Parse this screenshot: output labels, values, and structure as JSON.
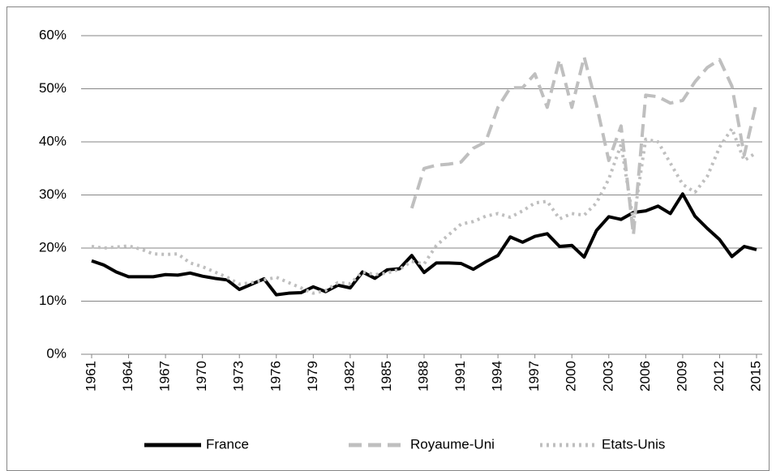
{
  "chart_data": {
    "type": "line",
    "x": [
      1961,
      1962,
      1963,
      1964,
      1965,
      1966,
      1967,
      1968,
      1969,
      1970,
      1971,
      1972,
      1973,
      1974,
      1975,
      1976,
      1977,
      1978,
      1979,
      1980,
      1981,
      1982,
      1983,
      1984,
      1985,
      1986,
      1987,
      1988,
      1989,
      1990,
      1991,
      1992,
      1993,
      1994,
      1995,
      1996,
      1997,
      1998,
      1999,
      2000,
      2001,
      2002,
      2003,
      2004,
      2005,
      2006,
      2007,
      2008,
      2009,
      2010,
      2011,
      2012,
      2013,
      2014,
      2015
    ],
    "xlim": [
      1961,
      2015
    ],
    "xticks": [
      1961,
      1964,
      1967,
      1970,
      1973,
      1976,
      1979,
      1982,
      1985,
      1988,
      1991,
      1994,
      1997,
      2000,
      2003,
      2006,
      2009,
      2012,
      2015
    ],
    "ylim": [
      0,
      60
    ],
    "yticks": [
      {
        "value": 0,
        "label": "0%"
      },
      {
        "value": 10,
        "label": "10%"
      },
      {
        "value": 20,
        "label": "20%"
      },
      {
        "value": 30,
        "label": "30%"
      },
      {
        "value": 40,
        "label": "40%"
      },
      {
        "value": 50,
        "label": "50%"
      },
      {
        "value": 60,
        "label": "60%"
      }
    ],
    "grid": true,
    "legend": "bottom",
    "series": [
      {
        "name": "France",
        "color": "#000000",
        "dash": "solid",
        "values": [
          17.6,
          16.8,
          15.5,
          14.6,
          14.6,
          14.6,
          15.0,
          14.9,
          15.3,
          14.7,
          14.3,
          14.0,
          12.2,
          13.2,
          14.2,
          11.2,
          11.5,
          11.6,
          12.7,
          11.8,
          13.0,
          12.5,
          15.5,
          14.3,
          15.9,
          16.1,
          18.6,
          15.4,
          17.2,
          17.2,
          17.1,
          16.0,
          17.4,
          18.6,
          22.1,
          21.1,
          22.2,
          22.7,
          20.3,
          20.5,
          18.3,
          23.3,
          25.9,
          25.4,
          26.7,
          27.0,
          27.9,
          26.5,
          30.2,
          26.0,
          23.7,
          21.6,
          18.4,
          20.3,
          19.7
        ]
      },
      {
        "name": "Royaume-Uni",
        "color": "#bfbfbf",
        "dash": "dashed",
        "values": [
          null,
          null,
          null,
          null,
          null,
          null,
          null,
          null,
          null,
          null,
          null,
          null,
          null,
          null,
          null,
          null,
          null,
          null,
          null,
          null,
          null,
          null,
          null,
          null,
          null,
          null,
          27.5,
          35.0,
          35.6,
          35.8,
          36.2,
          38.8,
          40.0,
          46.5,
          50.2,
          50.2,
          52.8,
          46.5,
          55.5,
          46.5,
          56.0,
          47.0,
          36.5,
          43.0,
          22.5,
          48.8,
          48.5,
          47.3,
          47.8,
          51.3,
          54.0,
          55.5,
          50.5,
          37.5,
          47.5
        ]
      },
      {
        "name": "Etats-Unis",
        "color": "#bfbfbf",
        "dash": "dotted",
        "values": [
          20.3,
          20.0,
          20.2,
          20.4,
          19.8,
          18.9,
          18.8,
          18.9,
          17.2,
          16.5,
          15.5,
          14.5,
          13.2,
          13.5,
          14.0,
          14.5,
          13.5,
          12.5,
          11.5,
          12.0,
          13.5,
          13.3,
          15.5,
          15.0,
          15.3,
          16.0,
          17.5,
          17.0,
          20.5,
          22.5,
          24.5,
          25.0,
          26.0,
          26.5,
          25.8,
          27.0,
          28.5,
          28.8,
          25.5,
          26.5,
          26.2,
          28.5,
          33.0,
          39.5,
          25.0,
          40.5,
          40.0,
          36.0,
          32.0,
          30.5,
          33.5,
          39.0,
          42.5,
          36.5,
          38.0
        ]
      }
    ]
  }
}
